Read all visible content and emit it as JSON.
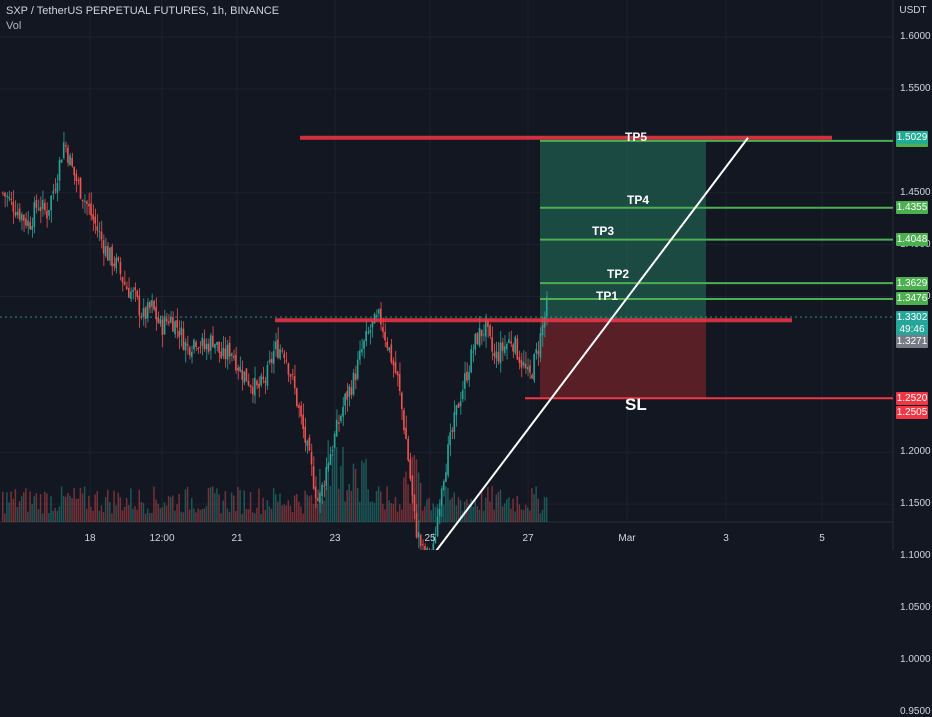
{
  "header": {
    "title": "SXP / TetherUS PERPETUAL FUTURES, 1h, BINANCE",
    "volume_label": "Vol",
    "currency": "USDT"
  },
  "colors": {
    "background": "#131722",
    "up": "#26a69a",
    "down": "#ef5350",
    "resistance": "#f23645",
    "target_line": "#4caf50",
    "stop_line": "#f23645",
    "profit_zone": "#1e5c4e",
    "loss_zone": "#6a2229"
  },
  "chart_data": {
    "type": "candlestick",
    "symbol": "SXP/USDT",
    "y_axis": {
      "ticks": [
        "1.6000",
        "1.5500",
        "1.4500",
        "1.4000",
        "1.3500",
        "1.2000",
        "1.1500",
        "1.1000",
        "1.0500",
        "1.0000",
        "0.9500"
      ],
      "range": [
        0.93,
        1.63
      ]
    },
    "x_axis": {
      "ticks": [
        "18",
        "12:00",
        "21",
        "23",
        "25",
        "27",
        "Mar",
        "3",
        "5"
      ]
    },
    "price_series": [
      1.45,
      1.44,
      1.43,
      1.42,
      1.44,
      1.43,
      1.46,
      1.5,
      1.47,
      1.45,
      1.43,
      1.41,
      1.39,
      1.38,
      1.36,
      1.35,
      1.33,
      1.34,
      1.32,
      1.33,
      1.32,
      1.3,
      1.31,
      1.3,
      1.31,
      1.29,
      1.3,
      1.28,
      1.27,
      1.26,
      1.27,
      1.3,
      1.3,
      1.27,
      1.23,
      1.19,
      1.15,
      1.19,
      1.22,
      1.25,
      1.27,
      1.3,
      1.32,
      1.33,
      1.3,
      1.27,
      1.21,
      1.13,
      1.1,
      1.1,
      1.17,
      1.21,
      1.25,
      1.28,
      1.31,
      1.32,
      1.29,
      1.3,
      1.31,
      1.29,
      1.27,
      1.3,
      1.34
    ],
    "levels": [
      {
        "label": "TP5",
        "price": 1.4999,
        "badge": "1.4999"
      },
      {
        "label": "TP4",
        "price": 1.4355,
        "badge": "1.4355"
      },
      {
        "label": "TP3",
        "price": 1.4048,
        "badge": "1.4048"
      },
      {
        "label": "TP2",
        "price": 1.3629,
        "badge": "1.3629"
      },
      {
        "label": "TP1",
        "price": 1.3476,
        "badge": "1.3476"
      },
      {
        "label": "SL",
        "price": 1.252,
        "badge": "1.2520"
      }
    ],
    "price_badges": [
      {
        "text": "1.5029",
        "price": 1.5029,
        "color": "#22ab94"
      },
      {
        "text": "1.3302",
        "price": 1.3302,
        "color": "#26a69a"
      },
      {
        "text": "49:46",
        "price": 1.318,
        "color": "#26a69a"
      },
      {
        "text": "1.3271",
        "price": 1.3071,
        "color": "#787b86"
      },
      {
        "text": "1.2505",
        "price": 1.2385,
        "color": "#f23645"
      }
    ],
    "resistance_levels": [
      1.5029,
      1.3271
    ],
    "trendline": {
      "from_price": 1.055,
      "to_price": 1.5029
    },
    "entry_price": 1.3271,
    "stop_price": 1.252,
    "target_price": 1.4999
  }
}
